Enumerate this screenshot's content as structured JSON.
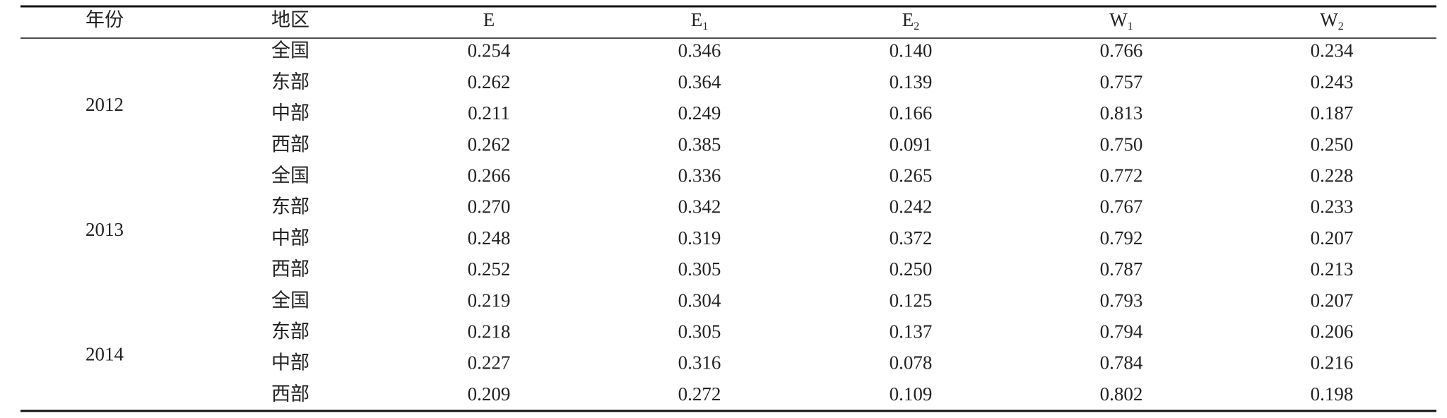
{
  "table": {
    "columns": [
      {
        "main": "年份"
      },
      {
        "main": "地区"
      },
      {
        "main": "E"
      },
      {
        "main": "E",
        "sub": "1"
      },
      {
        "main": "E",
        "sub": "2"
      },
      {
        "main": "W",
        "sub": "1"
      },
      {
        "main": "W",
        "sub": "2"
      }
    ],
    "groups": [
      {
        "year": "2012",
        "rows": [
          [
            "全国",
            "0.254",
            "0.346",
            "0.140",
            "0.766",
            "0.234"
          ],
          [
            "东部",
            "0.262",
            "0.364",
            "0.139",
            "0.757",
            "0.243"
          ],
          [
            "中部",
            "0.211",
            "0.249",
            "0.166",
            "0.813",
            "0.187"
          ],
          [
            "西部",
            "0.262",
            "0.385",
            "0.091",
            "0.750",
            "0.250"
          ]
        ]
      },
      {
        "year": "2013",
        "rows": [
          [
            "全国",
            "0.266",
            "0.336",
            "0.265",
            "0.772",
            "0.228"
          ],
          [
            "东部",
            "0.270",
            "0.342",
            "0.242",
            "0.767",
            "0.233"
          ],
          [
            "中部",
            "0.248",
            "0.319",
            "0.372",
            "0.792",
            "0.207"
          ],
          [
            "西部",
            "0.252",
            "0.305",
            "0.250",
            "0.787",
            "0.213"
          ]
        ]
      },
      {
        "year": "2014",
        "rows": [
          [
            "全国",
            "0.219",
            "0.304",
            "0.125",
            "0.793",
            "0.207"
          ],
          [
            "东部",
            "0.218",
            "0.305",
            "0.137",
            "0.794",
            "0.206"
          ],
          [
            "中部",
            "0.227",
            "0.316",
            "0.078",
            "0.784",
            "0.216"
          ],
          [
            "西部",
            "0.209",
            "0.272",
            "0.109",
            "0.802",
            "0.198"
          ]
        ]
      }
    ]
  }
}
